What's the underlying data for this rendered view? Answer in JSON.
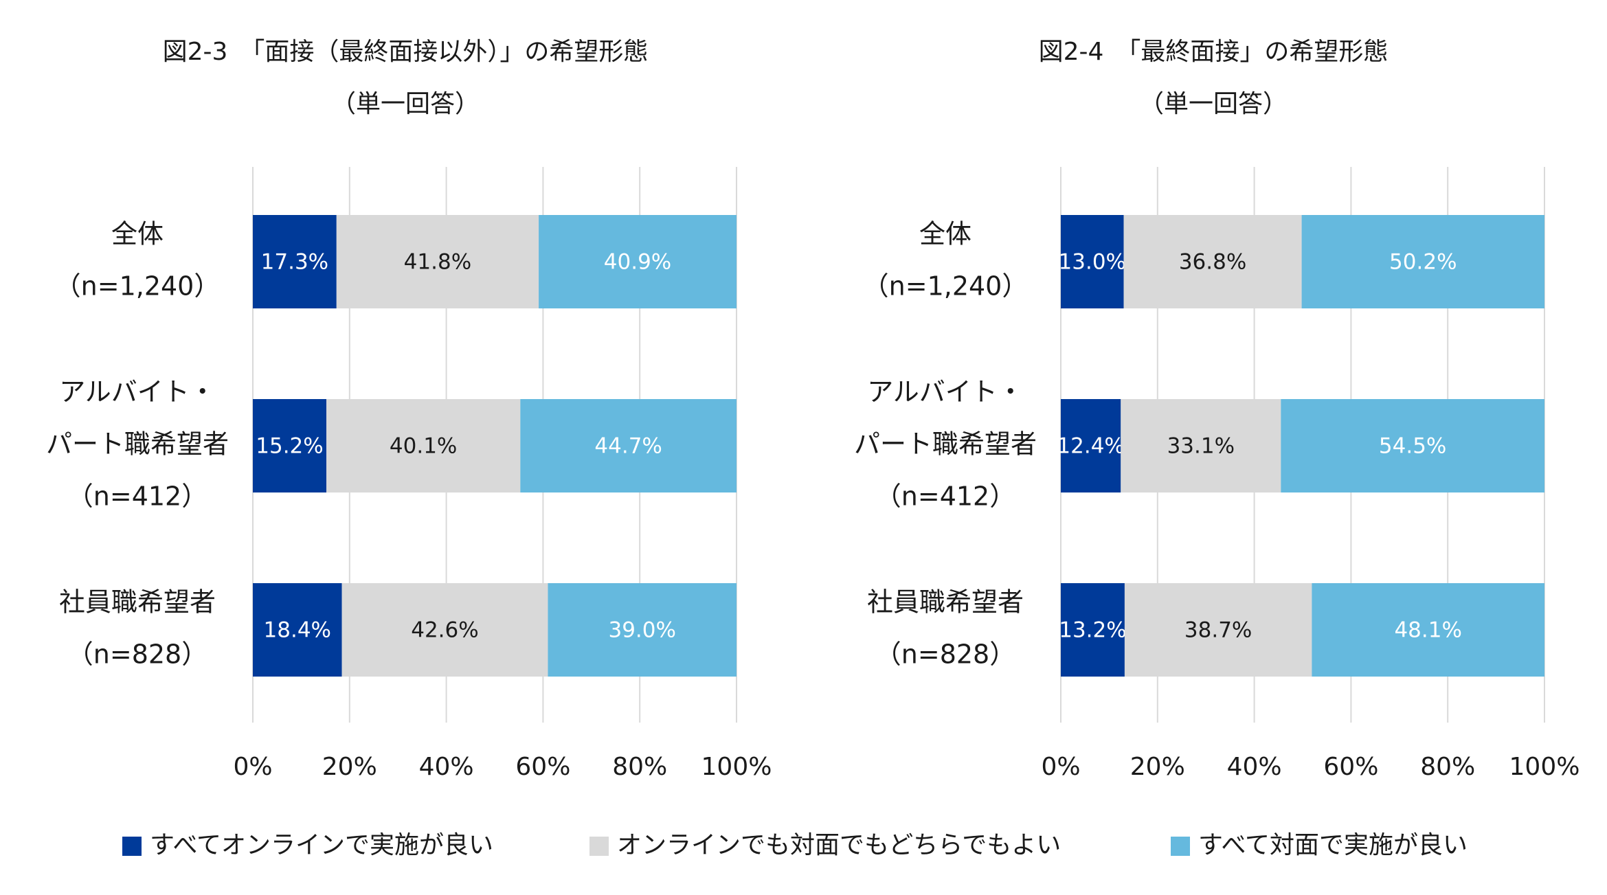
{
  "chart_data": [
    {
      "type": "bar",
      "stacked": "horizontal-100%",
      "title": "図2-3　「面接（最終面接以外）」の希望形態",
      "subtitle": "（単一回答）",
      "categories": [
        [
          "全体",
          "（n=1,240）"
        ],
        [
          "アルバイト・",
          "パート職希望者",
          "（n=412）"
        ],
        [
          "社員職希望者",
          "（n=828）"
        ]
      ],
      "series": [
        {
          "name": "すべてオンラインで実施が良い",
          "values": [
            17.3,
            15.2,
            18.4
          ],
          "labels": [
            "17.3%",
            "15.2%",
            "18.4%"
          ]
        },
        {
          "name": "オンラインでも対面でもどちらでもよい",
          "values": [
            41.8,
            40.1,
            42.6
          ],
          "labels": [
            "41.8%",
            "40.1%",
            "42.6%"
          ]
        },
        {
          "name": "すべて対面で実施が良い",
          "values": [
            40.9,
            44.7,
            39.0
          ],
          "labels": [
            "40.9%",
            "44.7%",
            "39.0%"
          ]
        }
      ],
      "xlim": [
        0,
        100
      ],
      "xticks": [
        "0%",
        "20%",
        "40%",
        "60%",
        "80%",
        "100%"
      ],
      "grid": true
    },
    {
      "type": "bar",
      "stacked": "horizontal-100%",
      "title": "図2-4　「最終面接」の希望形態",
      "subtitle": "（単一回答）",
      "categories": [
        [
          "全体",
          "（n=1,240）"
        ],
        [
          "アルバイト・",
          "パート職希望者",
          "（n=412）"
        ],
        [
          "社員職希望者",
          "（n=828）"
        ]
      ],
      "series": [
        {
          "name": "すべてオンラインで実施が良い",
          "values": [
            13.0,
            12.4,
            13.2
          ],
          "labels": [
            "13.0%",
            "12.4%",
            "13.2%"
          ]
        },
        {
          "name": "オンラインでも対面でもどちらでもよい",
          "values": [
            36.8,
            33.1,
            38.7
          ],
          "labels": [
            "36.8%",
            "33.1%",
            "38.7%"
          ]
        },
        {
          "name": "すべて対面で実施が良い",
          "values": [
            50.2,
            54.5,
            48.1
          ],
          "labels": [
            "50.2%",
            "54.5%",
            "48.1%"
          ]
        }
      ],
      "xlim": [
        0,
        100
      ],
      "xticks": [
        "0%",
        "20%",
        "40%",
        "60%",
        "80%",
        "100%"
      ],
      "grid": true
    }
  ],
  "legend": {
    "placement": "bottom",
    "items": [
      {
        "label": "すべてオンラインで実施が良い",
        "color": "#003a99"
      },
      {
        "label": "オンラインでも対面でもどちらでもよい",
        "color": "#d9d9d9"
      },
      {
        "label": "すべて対面で実施が良い",
        "color": "#65b9de"
      }
    ]
  },
  "colors": {
    "online": "#003a99",
    "either": "#d9d9d9",
    "in_person": "#65b9de",
    "label_on_dark": "#ffffff",
    "label_on_light": "#1a1a1a",
    "grid": "#d9d9d9"
  }
}
